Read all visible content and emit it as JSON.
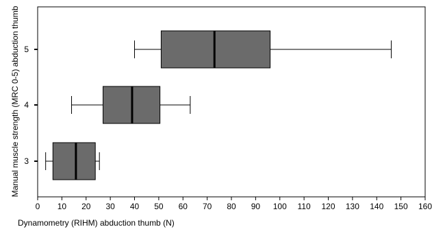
{
  "chart_data": {
    "type": "boxplot",
    "orientation": "horizontal",
    "xlabel": "Dynamometry (RIHM) abduction thumb (N)",
    "ylabel": "Manual muscle strength (MRC 0-5) abduction thumb",
    "xlim": [
      0,
      160
    ],
    "xticks": [
      0,
      10,
      20,
      30,
      40,
      50,
      60,
      70,
      80,
      90,
      100,
      110,
      120,
      130,
      140,
      150,
      160
    ],
    "categories": [
      "5",
      "4",
      "3"
    ],
    "box_color": "#6b6b6b",
    "boxes": [
      {
        "category": "5",
        "whisker_low": 40,
        "q1": 51,
        "median": 73,
        "q3": 96,
        "whisker_high": 146
      },
      {
        "category": "4",
        "whisker_low": 14,
        "q1": 27,
        "median": 39,
        "q3": 50.5,
        "whisker_high": 63
      },
      {
        "category": "3",
        "whisker_low": 3.3,
        "q1": 6.3,
        "median": 15.8,
        "q3": 23.8,
        "whisker_high": 25.5
      }
    ],
    "grid": false,
    "legend": false
  }
}
